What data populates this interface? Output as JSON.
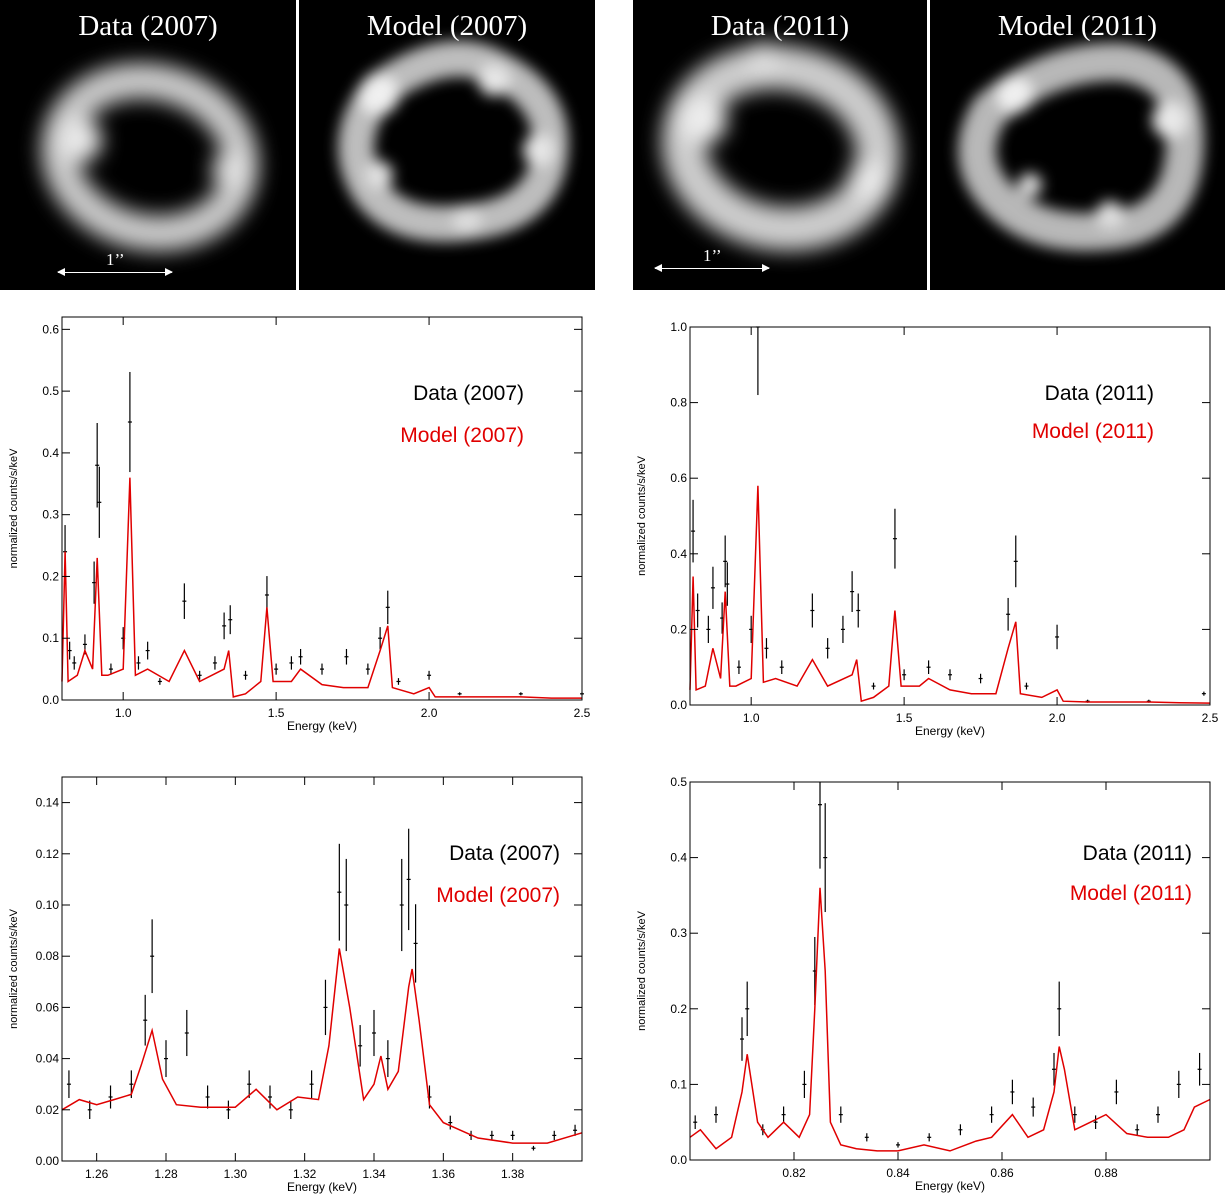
{
  "images": [
    {
      "caption": "Data (2007)",
      "scale_label": "1’’"
    },
    {
      "caption": "Model (2007)"
    },
    {
      "caption": "Data (2011)",
      "scale_label": "1’’"
    },
    {
      "caption": "Model (2011)"
    }
  ],
  "colors": {
    "data": "#000000",
    "model": "#e00000"
  },
  "chart_data": [
    {
      "type": "line",
      "legend": {
        "placement": "top-right"
      },
      "xlabel": "Energy (keV)",
      "ylabel": "normalized counts/s/keV",
      "xlim": [
        0.8,
        2.5
      ],
      "ylim": [
        0,
        0.62
      ],
      "xticks": [
        1.0,
        1.5,
        2.0,
        2.5
      ],
      "xtick_labels": [
        "1.0",
        "1.5",
        "2.0",
        "2.5"
      ],
      "yticks": [
        0.0,
        0.1,
        0.2,
        0.3,
        0.4,
        0.5,
        0.6
      ],
      "ytick_labels": [
        "0.0",
        "0.1",
        "0.2",
        "0.3",
        "0.4",
        "0.5",
        "0.6"
      ],
      "series": [
        {
          "name": "Data (2007)",
          "color": "#000000",
          "style": "errorbars",
          "x": [
            0.81,
            0.825,
            0.84,
            0.875,
            0.905,
            0.915,
            0.922,
            0.96,
            1.0,
            1.022,
            1.05,
            1.08,
            1.12,
            1.2,
            1.25,
            1.3,
            1.33,
            1.35,
            1.4,
            1.47,
            1.5,
            1.55,
            1.58,
            1.65,
            1.73,
            1.8,
            1.84,
            1.865,
            1.9,
            2.0,
            2.1,
            2.3,
            2.5
          ],
          "y": [
            0.24,
            0.08,
            0.06,
            0.09,
            0.19,
            0.38,
            0.32,
            0.05,
            0.1,
            0.45,
            0.06,
            0.08,
            0.03,
            0.16,
            0.04,
            0.06,
            0.12,
            0.13,
            0.04,
            0.17,
            0.05,
            0.06,
            0.07,
            0.05,
            0.07,
            0.05,
            0.1,
            0.15,
            0.03,
            0.04,
            0.01,
            0.01,
            0.01
          ]
        },
        {
          "name": "Model (2007)",
          "color": "#e00000",
          "style": "line",
          "x": [
            0.8,
            0.81,
            0.82,
            0.85,
            0.875,
            0.9,
            0.915,
            0.93,
            0.95,
            1.0,
            1.022,
            1.04,
            1.08,
            1.15,
            1.2,
            1.25,
            1.33,
            1.345,
            1.36,
            1.4,
            1.45,
            1.47,
            1.49,
            1.55,
            1.58,
            1.65,
            1.72,
            1.8,
            1.84,
            1.865,
            1.88,
            1.95,
            2.0,
            2.02,
            2.1,
            2.2,
            2.3,
            2.4,
            2.5
          ],
          "y": [
            0.03,
            0.24,
            0.03,
            0.04,
            0.08,
            0.05,
            0.23,
            0.04,
            0.04,
            0.05,
            0.36,
            0.04,
            0.05,
            0.03,
            0.08,
            0.03,
            0.05,
            0.08,
            0.005,
            0.01,
            0.03,
            0.15,
            0.03,
            0.03,
            0.05,
            0.025,
            0.02,
            0.02,
            0.08,
            0.12,
            0.02,
            0.01,
            0.02,
            0.005,
            0.005,
            0.005,
            0.005,
            0.003,
            0.003
          ]
        }
      ]
    },
    {
      "type": "line",
      "legend": {
        "placement": "top-right"
      },
      "xlabel": "Energy (keV)",
      "ylabel": "normalized counts/s/keV",
      "xlim": [
        0.8,
        2.5
      ],
      "ylim": [
        0,
        1.0
      ],
      "xticks": [
        1.0,
        1.5,
        2.0,
        2.5
      ],
      "xtick_labels": [
        "1.0",
        "1.5",
        "2.0",
        "2.5"
      ],
      "yticks": [
        0.0,
        0.2,
        0.4,
        0.6,
        0.8,
        1.0
      ],
      "ytick_labels": [
        "0.0",
        "0.2",
        "0.4",
        "0.6",
        "0.8",
        "1.0"
      ],
      "series": [
        {
          "name": "Data (2011)",
          "color": "#000000",
          "style": "errorbars",
          "x": [
            0.81,
            0.825,
            0.86,
            0.875,
            0.905,
            0.915,
            0.922,
            0.96,
            1.0,
            1.022,
            1.05,
            1.1,
            1.2,
            1.25,
            1.3,
            1.33,
            1.35,
            1.4,
            1.47,
            1.5,
            1.58,
            1.65,
            1.75,
            1.84,
            1.865,
            1.9,
            2.0,
            2.1,
            2.3,
            2.48
          ],
          "y": [
            0.46,
            0.25,
            0.2,
            0.31,
            0.23,
            0.38,
            0.32,
            0.1,
            0.2,
            1.0,
            0.15,
            0.1,
            0.25,
            0.15,
            0.2,
            0.3,
            0.25,
            0.05,
            0.44,
            0.08,
            0.1,
            0.08,
            0.07,
            0.24,
            0.38,
            0.05,
            0.18,
            0.01,
            0.01,
            0.03
          ]
        },
        {
          "name": "Model (2011)",
          "color": "#e00000",
          "style": "line",
          "x": [
            0.8,
            0.81,
            0.82,
            0.85,
            0.875,
            0.9,
            0.915,
            0.93,
            0.95,
            1.0,
            1.022,
            1.04,
            1.08,
            1.15,
            1.2,
            1.25,
            1.33,
            1.345,
            1.36,
            1.4,
            1.45,
            1.47,
            1.49,
            1.55,
            1.58,
            1.65,
            1.72,
            1.8,
            1.84,
            1.865,
            1.88,
            1.95,
            2.0,
            2.02,
            2.1,
            2.2,
            2.3,
            2.4,
            2.5
          ],
          "y": [
            0.04,
            0.34,
            0.04,
            0.05,
            0.15,
            0.07,
            0.3,
            0.05,
            0.05,
            0.07,
            0.58,
            0.06,
            0.07,
            0.05,
            0.12,
            0.05,
            0.08,
            0.12,
            0.01,
            0.02,
            0.05,
            0.25,
            0.05,
            0.05,
            0.07,
            0.04,
            0.03,
            0.03,
            0.15,
            0.22,
            0.03,
            0.02,
            0.04,
            0.01,
            0.008,
            0.008,
            0.008,
            0.006,
            0.005
          ]
        }
      ]
    },
    {
      "type": "line",
      "legend": {
        "placement": "top-right"
      },
      "xlabel": "Energy (keV)",
      "ylabel": "normalized counts/s/keV",
      "xlim": [
        1.25,
        1.4
      ],
      "ylim": [
        0,
        0.15
      ],
      "xticks": [
        1.26,
        1.28,
        1.3,
        1.32,
        1.34,
        1.36,
        1.38
      ],
      "xtick_labels": [
        "1.26",
        "1.28",
        "1.30",
        "1.32",
        "1.34",
        "1.36",
        "1.38"
      ],
      "yticks": [
        0.0,
        0.02,
        0.04,
        0.06,
        0.08,
        0.1,
        0.12,
        0.14
      ],
      "ytick_labels": [
        "0.00",
        "0.02",
        "0.04",
        "0.06",
        "0.08",
        "0.10",
        "0.12",
        "0.14"
      ],
      "series": [
        {
          "name": "Data (2007)",
          "color": "#000000",
          "style": "errorbars",
          "x": [
            1.252,
            1.258,
            1.264,
            1.27,
            1.274,
            1.276,
            1.28,
            1.286,
            1.292,
            1.298,
            1.304,
            1.31,
            1.316,
            1.322,
            1.326,
            1.33,
            1.332,
            1.336,
            1.34,
            1.344,
            1.348,
            1.35,
            1.352,
            1.356,
            1.362,
            1.368,
            1.374,
            1.38,
            1.386,
            1.392,
            1.398
          ],
          "y": [
            0.03,
            0.02,
            0.025,
            0.03,
            0.055,
            0.08,
            0.04,
            0.05,
            0.025,
            0.02,
            0.03,
            0.025,
            0.02,
            0.03,
            0.06,
            0.105,
            0.1,
            0.045,
            0.05,
            0.04,
            0.1,
            0.11,
            0.085,
            0.025,
            0.015,
            0.01,
            0.01,
            0.01,
            0.005,
            0.01,
            0.012
          ]
        },
        {
          "name": "Model (2007)",
          "color": "#e00000",
          "style": "line",
          "x": [
            1.25,
            1.255,
            1.26,
            1.265,
            1.27,
            1.273,
            1.276,
            1.279,
            1.283,
            1.29,
            1.3,
            1.306,
            1.312,
            1.318,
            1.324,
            1.327,
            1.33,
            1.333,
            1.337,
            1.34,
            1.342,
            1.344,
            1.347,
            1.35,
            1.351,
            1.353,
            1.356,
            1.36,
            1.37,
            1.38,
            1.39,
            1.4
          ],
          "y": [
            0.02,
            0.024,
            0.022,
            0.024,
            0.026,
            0.038,
            0.051,
            0.032,
            0.022,
            0.021,
            0.021,
            0.028,
            0.02,
            0.025,
            0.024,
            0.045,
            0.083,
            0.06,
            0.024,
            0.03,
            0.041,
            0.028,
            0.035,
            0.068,
            0.075,
            0.055,
            0.022,
            0.015,
            0.009,
            0.007,
            0.007,
            0.011
          ]
        }
      ]
    },
    {
      "type": "line",
      "legend": {
        "placement": "top-right"
      },
      "xlabel": "Energy (keV)",
      "ylabel": "normalized counts/s/keV",
      "xlim": [
        0.8,
        0.9
      ],
      "ylim": [
        0,
        0.5
      ],
      "xticks": [
        0.82,
        0.84,
        0.86,
        0.88
      ],
      "xtick_labels": [
        "0.82",
        "0.84",
        "0.86",
        "0.88"
      ],
      "yticks": [
        0.0,
        0.1,
        0.2,
        0.3,
        0.4,
        0.5
      ],
      "ytick_labels": [
        "0.0",
        "0.1",
        "0.2",
        "0.3",
        "0.4",
        "0.5"
      ],
      "series": [
        {
          "name": "Data (2011)",
          "color": "#000000",
          "style": "errorbars",
          "x": [
            0.801,
            0.805,
            0.81,
            0.811,
            0.814,
            0.818,
            0.822,
            0.824,
            0.825,
            0.826,
            0.829,
            0.834,
            0.84,
            0.846,
            0.852,
            0.858,
            0.862,
            0.866,
            0.87,
            0.871,
            0.874,
            0.878,
            0.882,
            0.886,
            0.89,
            0.894,
            0.898
          ],
          "y": [
            0.05,
            0.06,
            0.16,
            0.2,
            0.04,
            0.06,
            0.1,
            0.25,
            0.47,
            0.4,
            0.06,
            0.03,
            0.02,
            0.03,
            0.04,
            0.06,
            0.09,
            0.07,
            0.12,
            0.2,
            0.06,
            0.05,
            0.09,
            0.04,
            0.06,
            0.1,
            0.12
          ]
        },
        {
          "name": "Model (2011)",
          "color": "#e00000",
          "style": "line",
          "x": [
            0.8,
            0.802,
            0.805,
            0.808,
            0.81,
            0.811,
            0.813,
            0.815,
            0.818,
            0.821,
            0.823,
            0.824,
            0.825,
            0.826,
            0.827,
            0.829,
            0.832,
            0.836,
            0.84,
            0.845,
            0.85,
            0.855,
            0.858,
            0.862,
            0.865,
            0.868,
            0.87,
            0.871,
            0.872,
            0.874,
            0.877,
            0.88,
            0.884,
            0.888,
            0.892,
            0.895,
            0.897,
            0.9
          ],
          "y": [
            0.03,
            0.04,
            0.015,
            0.03,
            0.09,
            0.14,
            0.05,
            0.03,
            0.05,
            0.03,
            0.06,
            0.2,
            0.36,
            0.25,
            0.05,
            0.02,
            0.015,
            0.012,
            0.012,
            0.02,
            0.012,
            0.025,
            0.03,
            0.06,
            0.03,
            0.04,
            0.09,
            0.15,
            0.12,
            0.04,
            0.05,
            0.06,
            0.035,
            0.03,
            0.03,
            0.04,
            0.07,
            0.08
          ]
        }
      ]
    }
  ]
}
